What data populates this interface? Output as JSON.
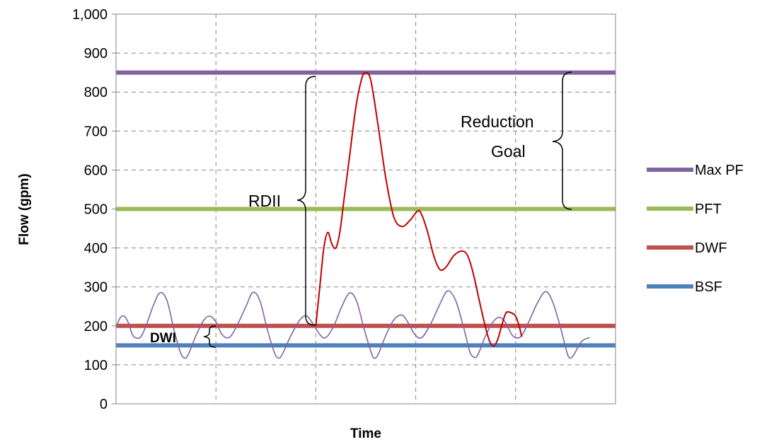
{
  "chart_data": {
    "type": "line",
    "xlabel": "Time",
    "ylabel": "Flow  (gpm)",
    "ylim": [
      0,
      1000
    ],
    "y_ticks": [
      "0",
      "100",
      "200",
      "300",
      "400",
      "500",
      "600",
      "700",
      "800",
      "900",
      "1,000"
    ],
    "xlim": [
      0,
      5
    ],
    "grid": "dashed, vertical and horizontal",
    "legend_position": "right",
    "series": [
      {
        "name": "Max PF",
        "color": "#8064a2",
        "y": 850
      },
      {
        "name": "PFT",
        "color": "#9bbb59",
        "y": 500
      },
      {
        "name": "DWF",
        "color": "#c0504d",
        "y": 200
      },
      {
        "name": "BSF",
        "color": "#4f81bd",
        "y": 150
      }
    ],
    "diurnal_curve": {
      "color": "#8064a2",
      "points": [
        [
          0,
          195
        ],
        [
          0.04,
          220
        ],
        [
          0.08,
          225
        ],
        [
          0.12,
          210
        ],
        [
          0.17,
          175
        ],
        [
          0.24,
          170
        ],
        [
          0.3,
          200
        ],
        [
          0.37,
          250
        ],
        [
          0.44,
          285
        ],
        [
          0.51,
          265
        ],
        [
          0.58,
          190
        ],
        [
          0.64,
          135
        ],
        [
          0.68,
          118
        ],
        [
          0.72,
          125
        ],
        [
          0.8,
          175
        ],
        [
          0.88,
          215
        ],
        [
          0.94,
          225
        ],
        [
          1,
          210
        ],
        [
          1.06,
          178
        ],
        [
          1.13,
          170
        ],
        [
          1.2,
          195
        ],
        [
          1.3,
          250
        ],
        [
          1.37,
          286
        ],
        [
          1.44,
          265
        ],
        [
          1.51,
          195
        ],
        [
          1.58,
          135
        ],
        [
          1.62,
          118
        ],
        [
          1.66,
          125
        ],
        [
          1.75,
          175
        ],
        [
          1.84,
          215
        ],
        [
          1.9,
          226
        ],
        [
          1.96,
          210
        ],
        [
          2.04,
          178
        ],
        [
          2.1,
          170
        ],
        [
          2.18,
          200
        ],
        [
          2.26,
          250
        ],
        [
          2.34,
          285
        ],
        [
          2.41,
          262
        ],
        [
          2.48,
          195
        ],
        [
          2.55,
          135
        ],
        [
          2.58,
          118
        ],
        [
          2.62,
          125
        ],
        [
          2.7,
          175
        ],
        [
          2.78,
          215
        ],
        [
          2.86,
          228
        ],
        [
          2.92,
          210
        ],
        [
          2.99,
          178
        ],
        [
          3.06,
          170
        ],
        [
          3.15,
          205
        ],
        [
          3.24,
          255
        ],
        [
          3.32,
          290
        ],
        [
          3.4,
          265
        ],
        [
          3.48,
          195
        ],
        [
          3.54,
          135
        ],
        [
          3.58,
          120
        ],
        [
          3.62,
          125
        ],
        [
          3.7,
          175
        ],
        [
          3.78,
          212
        ],
        [
          3.84,
          222
        ],
        [
          3.9,
          208
        ],
        [
          3.97,
          175
        ],
        [
          4.05,
          172
        ],
        [
          4.13,
          210
        ],
        [
          4.22,
          260
        ],
        [
          4.3,
          288
        ],
        [
          4.37,
          262
        ],
        [
          4.45,
          195
        ],
        [
          4.51,
          135
        ],
        [
          4.54,
          118
        ],
        [
          4.58,
          125
        ],
        [
          4.66,
          160
        ],
        [
          4.74,
          170
        ]
      ]
    },
    "wet_weather_curve": {
      "color": "#c00000",
      "points": [
        [
          2,
          200
        ],
        [
          2.04,
          300
        ],
        [
          2.08,
          400
        ],
        [
          2.12,
          440
        ],
        [
          2.16,
          410
        ],
        [
          2.2,
          400
        ],
        [
          2.24,
          440
        ],
        [
          2.28,
          520
        ],
        [
          2.34,
          640
        ],
        [
          2.4,
          760
        ],
        [
          2.46,
          835
        ],
        [
          2.5,
          850
        ],
        [
          2.55,
          830
        ],
        [
          2.62,
          720
        ],
        [
          2.7,
          580
        ],
        [
          2.78,
          480
        ],
        [
          2.86,
          455
        ],
        [
          2.94,
          470
        ],
        [
          3.02,
          495
        ],
        [
          3.06,
          485
        ],
        [
          3.12,
          440
        ],
        [
          3.18,
          380
        ],
        [
          3.24,
          345
        ],
        [
          3.3,
          350
        ],
        [
          3.38,
          380
        ],
        [
          3.46,
          392
        ],
        [
          3.52,
          380
        ],
        [
          3.58,
          330
        ],
        [
          3.64,
          260
        ],
        [
          3.7,
          195
        ],
        [
          3.74,
          160
        ],
        [
          3.78,
          148
        ],
        [
          3.82,
          165
        ],
        [
          3.86,
          200
        ],
        [
          3.9,
          232
        ],
        [
          3.94,
          235
        ],
        [
          4,
          225
        ],
        [
          4.04,
          195
        ],
        [
          4.06,
          172
        ]
      ]
    },
    "annotations": {
      "rdii": "RDII",
      "dwi": "DWI",
      "reduction_goal": [
        "Reduction",
        "Goal"
      ]
    }
  }
}
